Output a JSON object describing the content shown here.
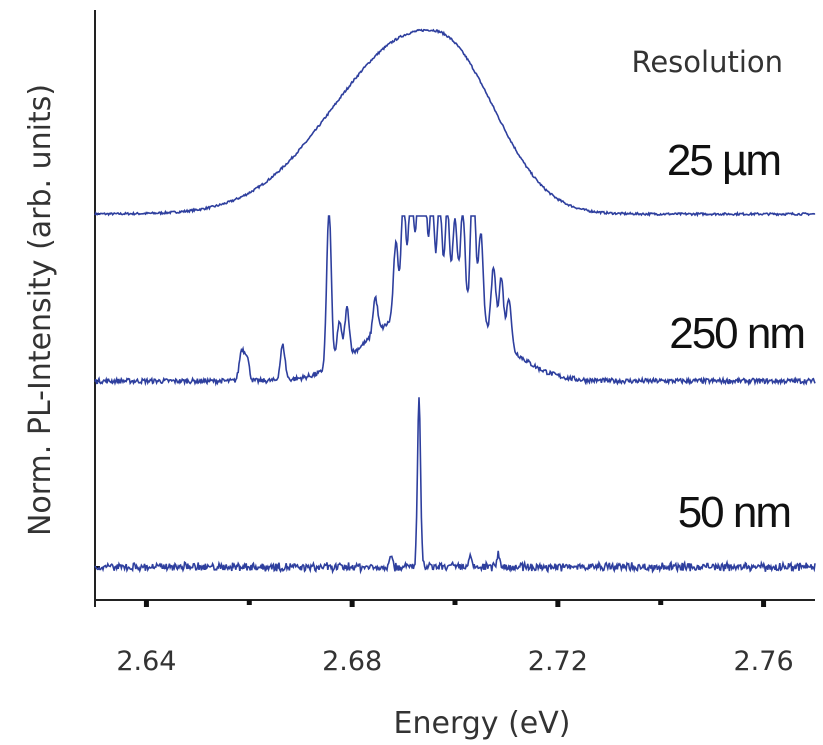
{
  "chart_data": {
    "type": "line",
    "xlabel": "Energy (eV)",
    "ylabel": "Norm. PL-Intensity (arb. units)",
    "xlim": [
      2.63,
      2.77
    ],
    "x_ticks": [
      "2.64",
      "2.68",
      "2.72",
      "2.76"
    ],
    "legend_title": "Resolution",
    "series_color": "#2e3f9e",
    "grid": false,
    "series": [
      {
        "name": "25 µm",
        "kind": "broad",
        "baseline": 0.0,
        "peak_energy": 2.695,
        "peak_value": 1.0,
        "width_low": 0.018,
        "width_high": 0.012
      },
      {
        "name": "250 nm",
        "kind": "lines",
        "baseline": 0.0,
        "envelope_center": 2.696,
        "envelope_value": 0.45,
        "peaks": [
          {
            "x": 2.6585,
            "y": 0.18
          },
          {
            "x": 2.6595,
            "y": 0.15
          },
          {
            "x": 2.6665,
            "y": 0.21
          },
          {
            "x": 2.6755,
            "y": 0.96
          },
          {
            "x": 2.6775,
            "y": 0.25
          },
          {
            "x": 2.679,
            "y": 0.3
          },
          {
            "x": 2.6845,
            "y": 0.22
          },
          {
            "x": 2.6885,
            "y": 0.45
          },
          {
            "x": 2.69,
            "y": 0.72
          },
          {
            "x": 2.6915,
            "y": 0.92
          },
          {
            "x": 2.693,
            "y": 0.88
          },
          {
            "x": 2.694,
            "y": 1.0
          },
          {
            "x": 2.6955,
            "y": 0.7
          },
          {
            "x": 2.697,
            "y": 0.66
          },
          {
            "x": 2.6985,
            "y": 0.6
          },
          {
            "x": 2.7,
            "y": 0.55
          },
          {
            "x": 2.7015,
            "y": 0.62
          },
          {
            "x": 2.7035,
            "y": 0.93
          },
          {
            "x": 2.705,
            "y": 0.55
          },
          {
            "x": 2.7075,
            "y": 0.4
          },
          {
            "x": 2.709,
            "y": 0.38
          },
          {
            "x": 2.7105,
            "y": 0.3
          }
        ]
      },
      {
        "name": "50 nm",
        "kind": "single",
        "baseline": 0.0,
        "peaks": [
          {
            "x": 2.693,
            "y": 1.0
          },
          {
            "x": 2.6875,
            "y": 0.08
          },
          {
            "x": 2.703,
            "y": 0.05
          },
          {
            "x": 2.7085,
            "y": 0.08
          }
        ]
      }
    ]
  }
}
